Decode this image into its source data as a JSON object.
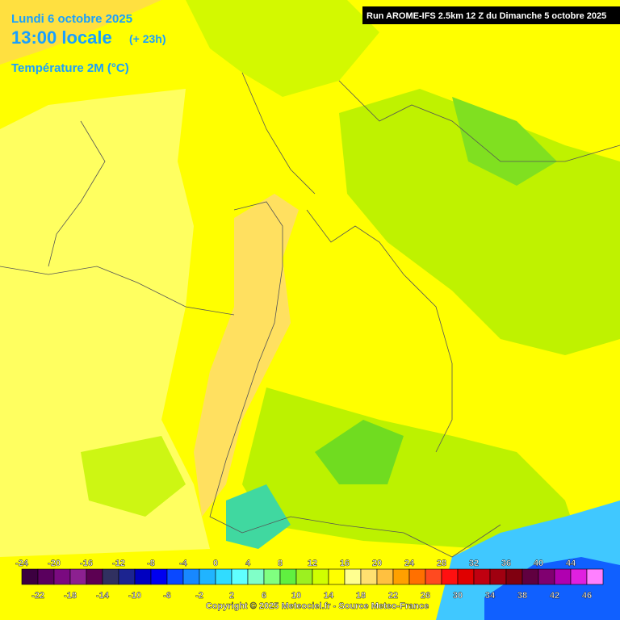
{
  "header": {
    "date": "Lundi 6 octobre 2025",
    "time": "13:00 locale",
    "lead": "(+ 23h)",
    "parameter": "Température 2M (°C)",
    "run": "Run AROME-IFS 2.5km 12 Z du Dimanche 5 octobre 2025"
  },
  "colorbar": {
    "top_labels": [
      -24,
      -20,
      -16,
      -12,
      -8,
      -4,
      0,
      4,
      8,
      12,
      16,
      20,
      24,
      28,
      32,
      36,
      40,
      44
    ],
    "bottom_labels": [
      -22,
      -18,
      -14,
      -10,
      -6,
      -2,
      2,
      6,
      10,
      14,
      18,
      22,
      26,
      30,
      34,
      38,
      42,
      46
    ],
    "colors": [
      "#3c0040",
      "#5a005e",
      "#7a0a80",
      "#8c2090",
      "#5c0052",
      "#303060",
      "#1c2490",
      "#0000c0",
      "#0000f0",
      "#0a48ff",
      "#1888ff",
      "#20b4ff",
      "#30dcff",
      "#60ffff",
      "#80ffc8",
      "#80ff80",
      "#60f040",
      "#9cf020",
      "#d0ff00",
      "#ffff00",
      "#ffff90",
      "#ffe070",
      "#ffc040",
      "#ffa000",
      "#ff7000",
      "#ff4a20",
      "#ff1010",
      "#e00000",
      "#c00010",
      "#a00010",
      "#800010",
      "#600040",
      "#800070",
      "#b000b0",
      "#e020e0",
      "#ff80ff"
    ]
  },
  "footer": {
    "copyright": "Copyright © 2025 Meteociel.fr - Source Meteo-France"
  }
}
